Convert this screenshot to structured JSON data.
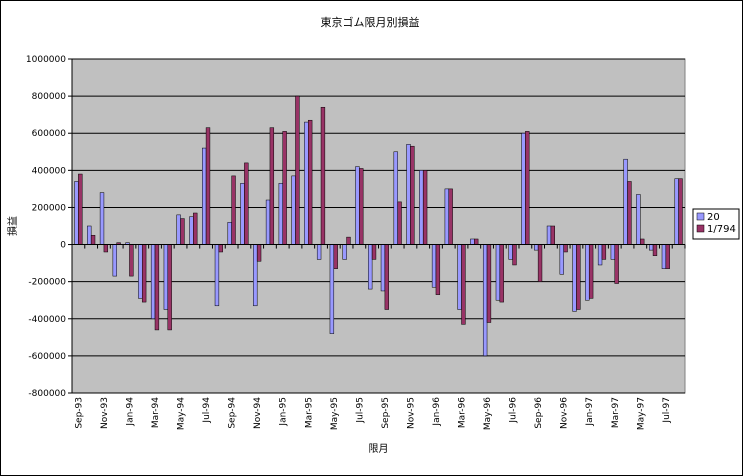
{
  "chart_data": {
    "type": "bar",
    "title": "東京ゴム限月別損益",
    "xlabel": "限月",
    "ylabel": "損益",
    "ylim": [
      -800000,
      1000000
    ],
    "yticks": [
      1000000,
      800000,
      600000,
      400000,
      200000,
      0,
      -200000,
      -400000,
      -600000,
      -800000
    ],
    "grid": true,
    "legend_position": "right",
    "categories": [
      "Sep-93",
      "Oct-93",
      "Nov-93",
      "Dec-93",
      "Jan-94",
      "Feb-94",
      "Mar-94",
      "Apr-94",
      "May-94",
      "Jun-94",
      "Jul-94",
      "Aug-94",
      "Sep-94",
      "Oct-94",
      "Nov-94",
      "Dec-94",
      "Jan-95",
      "Feb-95",
      "Mar-95",
      "Apr-95",
      "May-95",
      "Jun-95",
      "Jul-95",
      "Aug-95",
      "Sep-95",
      "Oct-95",
      "Nov-95",
      "Dec-95",
      "Jan-96",
      "Feb-96",
      "Mar-96",
      "Apr-96",
      "May-96",
      "Jun-96",
      "Jul-96",
      "Aug-96",
      "Sep-96",
      "Oct-96",
      "Nov-96",
      "Dec-96",
      "Jan-97",
      "Feb-97",
      "Mar-97",
      "Apr-97",
      "May-97",
      "Jun-97",
      "Jul-97",
      "Aug-97"
    ],
    "tick_labels": [
      "Sep-93",
      "Nov-93",
      "Jan-94",
      "Mar-94",
      "May-94",
      "Jul-94",
      "Sep-94",
      "Nov-94",
      "Jan-95",
      "Mar-95",
      "May-95",
      "Jul-95",
      "Sep-95",
      "Nov-95",
      "Jan-96",
      "Mar-96",
      "May-96",
      "Jul-96",
      "Sep-96",
      "Nov-96",
      "Jan-97",
      "Mar-97",
      "May-97",
      "Jul-97"
    ],
    "series": [
      {
        "name": "20",
        "color": "#9999ff",
        "values": [
          340000,
          100000,
          280000,
          -170000,
          10000,
          -290000,
          -400000,
          -350000,
          160000,
          150000,
          520000,
          -330000,
          120000,
          330000,
          -330000,
          240000,
          330000,
          370000,
          660000,
          -80000,
          -480000,
          -80000,
          420000,
          -240000,
          -250000,
          500000,
          540000,
          400000,
          -230000,
          300000,
          -350000,
          30000,
          -600000,
          -300000,
          -80000,
          600000,
          -30000,
          100000,
          -160000,
          -360000,
          -300000,
          -110000,
          -80000,
          460000,
          270000,
          -30000,
          -130000,
          355000
        ]
      },
      {
        "name": "1/794",
        "color": "#993366",
        "values": [
          380000,
          50000,
          -40000,
          10000,
          -170000,
          -310000,
          -460000,
          -460000,
          140000,
          170000,
          630000,
          -40000,
          370000,
          440000,
          -90000,
          630000,
          610000,
          800000,
          670000,
          740000,
          -130000,
          40000,
          410000,
          -80000,
          -350000,
          230000,
          530000,
          400000,
          -270000,
          300000,
          -430000,
          30000,
          -420000,
          -310000,
          -110000,
          610000,
          -200000,
          100000,
          -40000,
          -350000,
          -290000,
          -80000,
          -210000,
          340000,
          30000,
          -60000,
          -130000,
          355000
        ]
      }
    ]
  }
}
